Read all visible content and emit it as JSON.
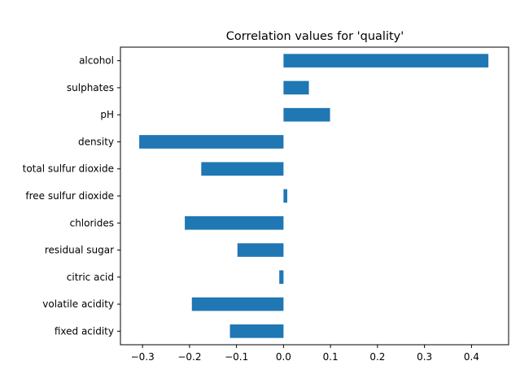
{
  "chart_data": {
    "type": "bar",
    "orientation": "horizontal",
    "title": "Correlation values for 'quality'",
    "xlabel": "",
    "ylabel": "",
    "categories": [
      "fixed acidity",
      "volatile acidity",
      "citric acid",
      "residual sugar",
      "chlorides",
      "free sulfur dioxide",
      "total sulfur dioxide",
      "density",
      "pH",
      "sulphates",
      "alcohol"
    ],
    "values": [
      -0.114,
      -0.195,
      -0.009,
      -0.098,
      -0.21,
      0.008,
      -0.175,
      -0.307,
      0.099,
      0.054,
      0.436
    ],
    "xlim": [
      -0.347,
      0.479
    ],
    "xticks": [
      -0.3,
      -0.2,
      -0.1,
      0.0,
      0.1,
      0.2,
      0.3,
      0.4
    ],
    "xtick_labels": [
      "−0.3",
      "−0.2",
      "−0.1",
      "0.0",
      "0.1",
      "0.2",
      "0.3",
      "0.4"
    ],
    "grid": false,
    "bar_color": "#1f77b4"
  }
}
